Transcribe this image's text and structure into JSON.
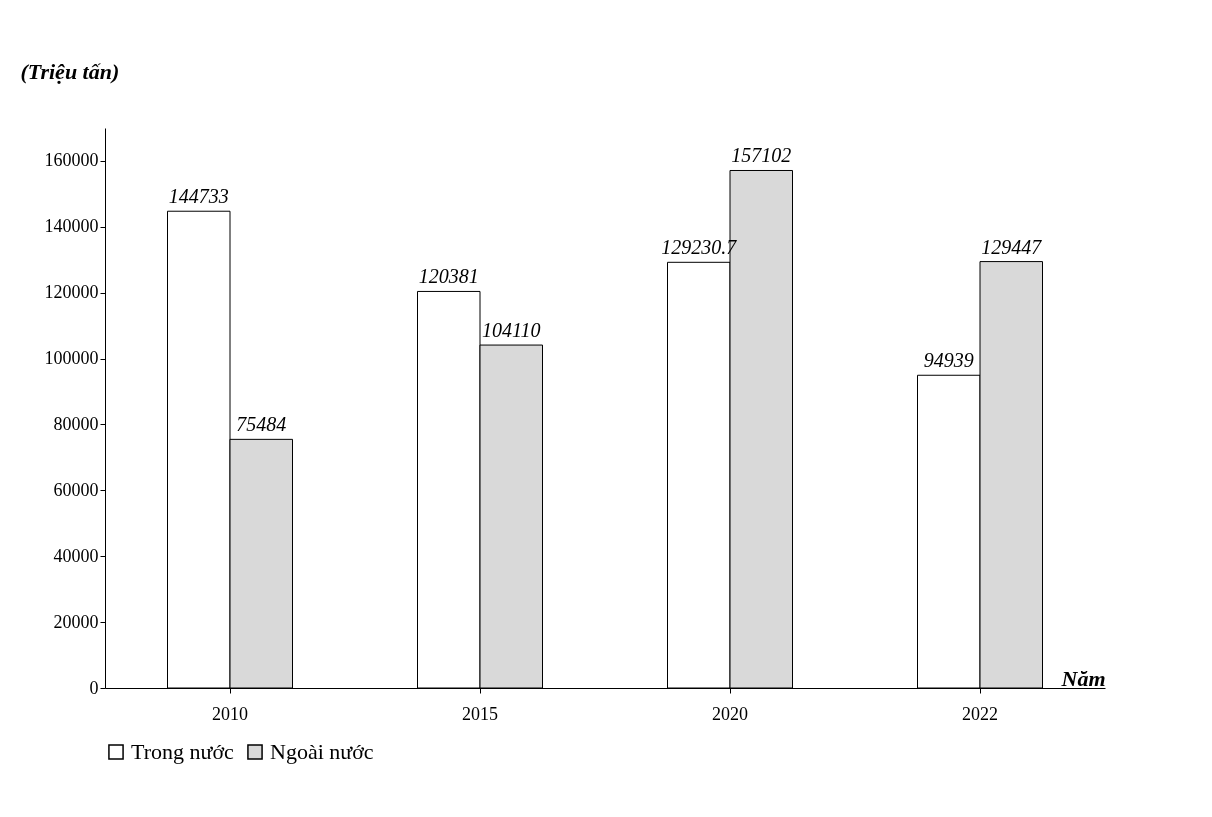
{
  "chart_data": {
    "type": "bar",
    "ylabel": "(Triệu tấn)",
    "xlabel": "Năm",
    "categories": [
      "2010",
      "2015",
      "2020",
      "2022"
    ],
    "series": [
      {
        "name": "Trong nước",
        "color": "#ffffff",
        "values": [
          144733,
          120381,
          129230.7,
          94939
        ]
      },
      {
        "name": "Ngoài nước",
        "color": "#d9d9d9",
        "values": [
          75484,
          104110,
          157102,
          129447
        ]
      }
    ],
    "ylim": [
      0,
      170000
    ],
    "yticks": [
      0,
      20000,
      40000,
      60000,
      80000,
      100000,
      120000,
      140000,
      160000
    ],
    "data_labels": true,
    "grid": false,
    "legend": "bottom"
  }
}
